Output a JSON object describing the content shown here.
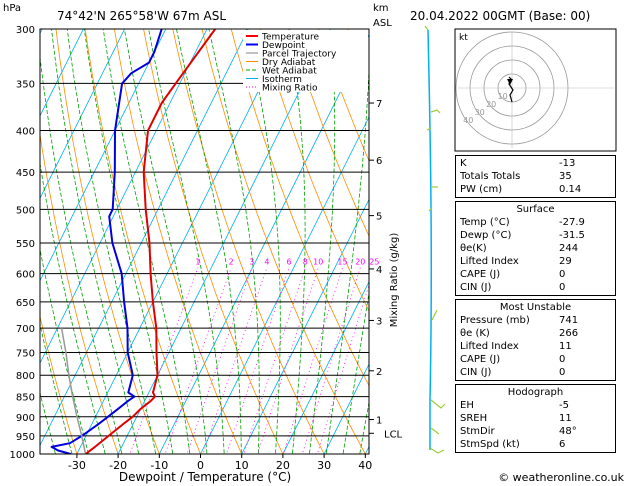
{
  "header": {
    "location": "74°42'N  265°58'W  67m  ASL",
    "datetime": "20.04.2022  00GMT  (Base: 00)",
    "hpa_label": "hPa",
    "km_label": "km",
    "asl_label": "ASL"
  },
  "chart_data": {
    "type": "skew-t",
    "title": "74°42'N 265°58'W 67m ASL",
    "xlabel": "Dewpoint / Temperature (°C)",
    "ylabel_right": "Mixing Ratio (g/kg)",
    "pressure_levels": [
      300,
      350,
      400,
      450,
      500,
      550,
      600,
      650,
      700,
      750,
      800,
      850,
      900,
      950,
      1000
    ],
    "temp_ticks": [
      -30,
      -20,
      -10,
      0,
      10,
      20,
      30,
      40
    ],
    "xlim": [
      -35,
      40
    ],
    "km_ticks": [
      {
        "km": 1,
        "p": 907
      },
      {
        "km": 2,
        "p": 790
      },
      {
        "km": 3,
        "p": 685
      },
      {
        "km": 4,
        "p": 592
      },
      {
        "km": 5,
        "p": 509
      },
      {
        "km": 6,
        "p": 435
      },
      {
        "km": 7,
        "p": 370
      }
    ],
    "lcl": {
      "label": "LCL",
      "p": 943
    },
    "mixing_ratio": {
      "labels": [
        "1",
        "2",
        "3",
        "4",
        "6",
        "8",
        "10",
        "15",
        "20",
        "25"
      ],
      "values": [
        1,
        2,
        3,
        4,
        6,
        8,
        10,
        15,
        20,
        25
      ],
      "label_p": 590
    },
    "legend": [
      {
        "label": "Temperature",
        "color": "#ff0000"
      },
      {
        "label": "Dewpoint",
        "color": "#0000ff"
      },
      {
        "label": "Parcel Trajectory",
        "color": "#808080"
      },
      {
        "label": "Dry Adiabat",
        "color": "#ff8c00"
      },
      {
        "label": "Wet Adiabat",
        "color": "#00a000"
      },
      {
        "label": "Isotherm",
        "color": "#00b0f0"
      },
      {
        "label": "Mixing Ratio",
        "color": "#ff00ff"
      }
    ],
    "series": [
      {
        "name": "Temperature",
        "color": "#e00000",
        "points": [
          [
            1000,
            -27.9
          ],
          [
            980,
            -26.5
          ],
          [
            950,
            -24.5
          ],
          [
            920,
            -22.5
          ],
          [
            900,
            -21
          ],
          [
            880,
            -20
          ],
          [
            860,
            -18.5
          ],
          [
            850,
            -18
          ],
          [
            840,
            -19
          ],
          [
            800,
            -20
          ],
          [
            750,
            -23
          ],
          [
            700,
            -26
          ],
          [
            650,
            -30
          ],
          [
            600,
            -34
          ],
          [
            550,
            -38
          ],
          [
            500,
            -43
          ],
          [
            450,
            -48
          ],
          [
            400,
            -52
          ],
          [
            370,
            -52
          ],
          [
            350,
            -51
          ],
          [
            300,
            -48
          ]
        ]
      },
      {
        "name": "Dewpoint",
        "color": "#0000e0",
        "points": [
          [
            1000,
            -31.5
          ],
          [
            990,
            -35
          ],
          [
            980,
            -37
          ],
          [
            970,
            -33
          ],
          [
            950,
            -31
          ],
          [
            920,
            -28.5
          ],
          [
            900,
            -27
          ],
          [
            880,
            -25.5
          ],
          [
            860,
            -24
          ],
          [
            850,
            -23
          ],
          [
            840,
            -25
          ],
          [
            800,
            -26
          ],
          [
            750,
            -30
          ],
          [
            700,
            -33
          ],
          [
            650,
            -37
          ],
          [
            600,
            -41
          ],
          [
            550,
            -47
          ],
          [
            510,
            -51
          ],
          [
            500,
            -51
          ],
          [
            450,
            -55
          ],
          [
            400,
            -60
          ],
          [
            350,
            -64
          ],
          [
            340,
            -63
          ],
          [
            330,
            -60
          ],
          [
            320,
            -60
          ],
          [
            300,
            -61
          ]
        ]
      },
      {
        "name": "Parcel Trajectory",
        "color": "#999999",
        "points": [
          [
            1000,
            -27.9
          ],
          [
            943,
            -31.5
          ],
          [
            900,
            -34.5
          ],
          [
            850,
            -38
          ],
          [
            800,
            -41.5
          ],
          [
            750,
            -45
          ],
          [
            700,
            -49
          ]
        ]
      }
    ]
  },
  "hodograph": {
    "label": "kt",
    "ring_labels": [
      "10",
      "20",
      "30",
      "40"
    ]
  },
  "indices": {
    "rows": [
      {
        "label": "K",
        "value": "-13"
      },
      {
        "label": "Totals Totals",
        "value": "35"
      },
      {
        "label": "PW (cm)",
        "value": "0.14"
      }
    ]
  },
  "surface": {
    "title": "Surface",
    "rows": [
      {
        "label": "Temp (°C)",
        "value": "-27.9"
      },
      {
        "label": "Dewp (°C)",
        "value": "-31.5"
      },
      {
        "label": "θe(K)",
        "value": "244"
      },
      {
        "label": "Lifted Index",
        "value": "29"
      },
      {
        "label": "CAPE (J)",
        "value": "0"
      },
      {
        "label": "CIN (J)",
        "value": "0"
      }
    ]
  },
  "most_unstable": {
    "title": "Most Unstable",
    "rows": [
      {
        "label": "Pressure (mb)",
        "value": "741"
      },
      {
        "label": "θe (K)",
        "value": "266"
      },
      {
        "label": "Lifted Index",
        "value": "11"
      },
      {
        "label": "CAPE (J)",
        "value": "0"
      },
      {
        "label": "CIN (J)",
        "value": "0"
      }
    ]
  },
  "hodograph_table": {
    "title": "Hodograph",
    "rows": [
      {
        "label": "EH",
        "value": "-5"
      },
      {
        "label": "SREH",
        "value": "11"
      },
      {
        "label": "StmDir",
        "value": "48°"
      },
      {
        "label": "StmSpd (kt)",
        "value": "6"
      }
    ]
  },
  "footer": {
    "credit": "© weatheronline.co.uk"
  },
  "colors": {
    "isotherm": "#00b0f0",
    "dry_adiabat": "#ff8c00",
    "wet_adiabat": "#00a000",
    "mixing_ratio": "#ff00ff",
    "wind": "#9acd32"
  }
}
